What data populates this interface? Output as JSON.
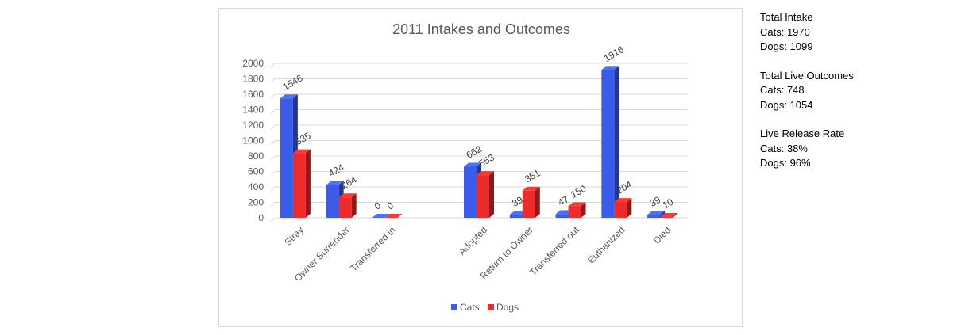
{
  "chart_data": {
    "type": "bar",
    "title": "2011 Intakes and Outcomes",
    "categories": [
      "Stray",
      "Owner Surrender",
      "Transferred in",
      "",
      "Adopted",
      "Return to Owner",
      "Transferred out",
      "Euthanized",
      "Died"
    ],
    "series": [
      {
        "name": "Cats",
        "color": "#3a5ce8",
        "values": [
          1546,
          424,
          0,
          null,
          662,
          39,
          47,
          1916,
          39
        ]
      },
      {
        "name": "Dogs",
        "color": "#ee2b2b",
        "values": [
          835,
          264,
          0,
          null,
          553,
          351,
          150,
          204,
          10
        ]
      }
    ],
    "yticks": [
      0,
      200,
      400,
      600,
      800,
      1000,
      1200,
      1400,
      1600,
      1800,
      2000
    ],
    "ylim": [
      0,
      2000
    ],
    "grid": true,
    "legend": "bottom",
    "style": "3d-column"
  },
  "side_panel": {
    "blocks": [
      {
        "title": "Total Intake",
        "lines": [
          "Cats: 1970",
          "Dogs: 1099"
        ]
      },
      {
        "title": "Total Live Outcomes",
        "lines": [
          "Cats: 748",
          "Dogs: 1054"
        ]
      },
      {
        "title": "Live Release Rate",
        "lines": [
          "Cats: 38%",
          "Dogs: 96%"
        ]
      }
    ]
  }
}
